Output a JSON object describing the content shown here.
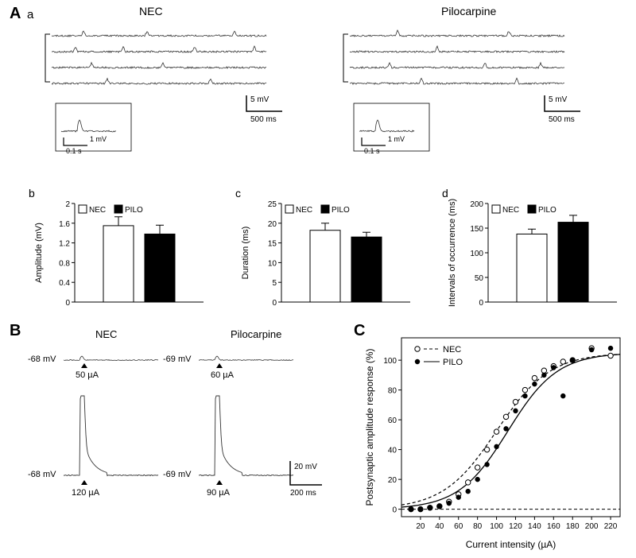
{
  "labels": {
    "A": "A",
    "Aa": "a",
    "Ab": "b",
    "Ac": "c",
    "Ad": "d",
    "B": "B",
    "C": "C",
    "NEC_title": "NEC",
    "Pilo_title": "Pilocarpine"
  },
  "colors": {
    "text": "#000000",
    "bg": "#ffffff",
    "nec_fill": "#ffffff",
    "pilo_fill": "#000000",
    "axis": "#000000",
    "trace": "#333333"
  },
  "trace_panel": {
    "scale_v": "5 mV",
    "scale_t": "500 ms",
    "inset_v": "1 mV",
    "inset_t": "0.1 s"
  },
  "bar_b": {
    "ylabel": "Amplitude (mV)",
    "ylim": [
      0,
      2.0
    ],
    "yticks": [
      0,
      0.4,
      0.8,
      1.2,
      1.6,
      2.0
    ],
    "nec": {
      "val": 1.55,
      "err": 0.18,
      "color": "#ffffff"
    },
    "pilo": {
      "val": 1.38,
      "err": 0.18,
      "color": "#000000"
    },
    "legend": [
      "NEC",
      "PILO"
    ]
  },
  "bar_c": {
    "ylabel": "Duration (ms)",
    "ylim": [
      0,
      25
    ],
    "yticks": [
      0,
      5,
      10,
      15,
      20,
      25
    ],
    "nec": {
      "val": 18.2,
      "err": 1.8,
      "color": "#ffffff"
    },
    "pilo": {
      "val": 16.5,
      "err": 1.2,
      "color": "#000000"
    }
  },
  "bar_d": {
    "ylabel": "Intervals of occurrence (ms)",
    "ylim": [
      0,
      200
    ],
    "yticks": [
      0,
      50,
      100,
      150,
      200
    ],
    "nec": {
      "val": 138,
      "err": 10,
      "color": "#ffffff"
    },
    "pilo": {
      "val": 162,
      "err": 14,
      "color": "#000000"
    }
  },
  "panel_B": {
    "nec_mv": "-68 mV",
    "pilo_mv": "-69 mV",
    "nec_lo": "50 µA",
    "pilo_lo": "60 µA",
    "nec_hi": "120 µA",
    "pilo_hi": "90 µA",
    "scale_v": "20 mV",
    "scale_t": "200 ms"
  },
  "panel_C": {
    "xlabel": "Current intensity (µA)",
    "ylabel": "Postsynaptic amplitude response (%)",
    "xlim": [
      0,
      230
    ],
    "ylim": [
      -5,
      115
    ],
    "xticks": [
      20,
      40,
      60,
      80,
      100,
      120,
      140,
      160,
      180,
      200,
      220
    ],
    "yticks": [
      0,
      20,
      40,
      60,
      80,
      100
    ],
    "legend": [
      "NEC",
      "PILO"
    ],
    "nec": {
      "x": [
        10,
        20,
        30,
        40,
        50,
        60,
        70,
        80,
        90,
        100,
        110,
        120,
        130,
        140,
        150,
        160,
        170,
        180,
        200,
        220
      ],
      "y": [
        0,
        0,
        1,
        2,
        5,
        10,
        18,
        28,
        40,
        52,
        62,
        72,
        80,
        88,
        93,
        96,
        99,
        100,
        108,
        103
      ],
      "marker": "open",
      "color": "#000000",
      "line_dash": "4,3"
    },
    "pilo": {
      "x": [
        10,
        20,
        30,
        40,
        50,
        60,
        70,
        80,
        90,
        100,
        110,
        120,
        130,
        140,
        150,
        160,
        170,
        180,
        200,
        220
      ],
      "y": [
        0,
        0,
        1,
        2,
        4,
        8,
        12,
        20,
        30,
        42,
        54,
        66,
        76,
        84,
        90,
        95,
        76,
        100,
        107,
        108
      ],
      "marker": "filled",
      "color": "#000000",
      "line_dash": ""
    }
  }
}
